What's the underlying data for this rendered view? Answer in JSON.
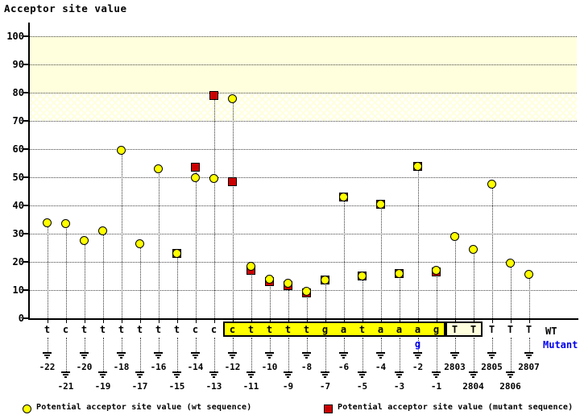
{
  "title": "Acceptor site value",
  "legend": {
    "wt_label": "Potential acceptor site value (wt sequence)",
    "mutant_label": "Potential acceptor site value (mutant sequence)"
  },
  "sequence_row_labels": {
    "wt": "WT",
    "mutant": "Mutant"
  },
  "colors": {
    "wt_marker_fill": "#ffff00",
    "mutant_marker_fill": "#cc0000",
    "high_score_band": "#ffffdd",
    "acceptor_highlight": "#ffff00",
    "exon_box_fill": "#ffffdd",
    "mutant_text_blue": "#0000ee"
  },
  "chart_data": {
    "type": "scatter",
    "title": "Acceptor site value",
    "ylabel": "Acceptor site value",
    "ylim": [
      0,
      105
    ],
    "yticks": [
      0,
      10,
      20,
      30,
      40,
      50,
      60,
      70,
      80,
      90,
      100
    ],
    "grid": "horizontal-dotted",
    "legend_position": "bottom",
    "threshold_bands": [
      {
        "from": 80,
        "to": 100,
        "style": "solid"
      },
      {
        "from": 70,
        "to": 80,
        "style": "hatch"
      }
    ],
    "series_names": [
      "wt",
      "mutant"
    ],
    "points": [
      {
        "pos": "-22",
        "base": "t",
        "region": "intron",
        "label_row": 1,
        "wt": 34,
        "mut": null
      },
      {
        "pos": "-21",
        "base": "c",
        "region": "intron",
        "label_row": 2,
        "wt": 33.5,
        "mut": null
      },
      {
        "pos": "-20",
        "base": "t",
        "region": "intron",
        "label_row": 1,
        "wt": 27.5,
        "mut": null
      },
      {
        "pos": "-19",
        "base": "t",
        "region": "intron",
        "label_row": 2,
        "wt": 31,
        "mut": null
      },
      {
        "pos": "-18",
        "base": "t",
        "region": "intron",
        "label_row": 1,
        "wt": 59.5,
        "mut": null
      },
      {
        "pos": "-17",
        "base": "t",
        "region": "intron",
        "label_row": 2,
        "wt": 26.5,
        "mut": null
      },
      {
        "pos": "-16",
        "base": "t",
        "region": "intron",
        "label_row": 1,
        "wt": 53,
        "mut": null
      },
      {
        "pos": "-15",
        "base": "t",
        "region": "intron",
        "label_row": 2,
        "wt": 23,
        "mut": 23
      },
      {
        "pos": "-14",
        "base": "c",
        "region": "intron",
        "label_row": 1,
        "wt": 50,
        "mut": 53.5
      },
      {
        "pos": "-13",
        "base": "c",
        "region": "intron",
        "label_row": 2,
        "wt": 49.5,
        "mut": 79
      },
      {
        "pos": "-12",
        "base": "c",
        "region": "acceptor",
        "label_row": 1,
        "wt": 78,
        "mut": 48.5
      },
      {
        "pos": "-11",
        "base": "t",
        "region": "acceptor",
        "label_row": 2,
        "wt": 18.5,
        "mut": 17
      },
      {
        "pos": "-10",
        "base": "t",
        "region": "acceptor",
        "label_row": 1,
        "wt": 14,
        "mut": 13
      },
      {
        "pos": "-9",
        "base": "t",
        "region": "acceptor",
        "label_row": 2,
        "wt": 12.5,
        "mut": 11.5
      },
      {
        "pos": "-8",
        "base": "t",
        "region": "acceptor",
        "label_row": 1,
        "wt": 9.5,
        "mut": 9
      },
      {
        "pos": "-7",
        "base": "g",
        "region": "acceptor",
        "label_row": 2,
        "wt": 13.5,
        "mut": 13.5
      },
      {
        "pos": "-6",
        "base": "a",
        "region": "acceptor",
        "label_row": 1,
        "wt": 43,
        "mut": 43
      },
      {
        "pos": "-5",
        "base": "t",
        "region": "acceptor",
        "label_row": 2,
        "wt": 15,
        "mut": 15
      },
      {
        "pos": "-4",
        "base": "a",
        "region": "acceptor",
        "label_row": 1,
        "wt": 40.5,
        "mut": 40.5
      },
      {
        "pos": "-3",
        "base": "a",
        "region": "acceptor",
        "label_row": 2,
        "wt": 16,
        "mut": 16
      },
      {
        "pos": "-2",
        "base": "a",
        "region": "acceptor",
        "label_row": 1,
        "wt": 54,
        "mut": 54
      },
      {
        "pos": "-1",
        "base": "g",
        "region": "acceptor",
        "label_row": 2,
        "wt": 17,
        "mut": 16.5
      },
      {
        "pos": "2803",
        "base": "T",
        "region": "exon_box",
        "label_row": 1,
        "wt": 29,
        "mut": null
      },
      {
        "pos": "2804",
        "base": "T",
        "region": "exon_box",
        "label_row": 2,
        "wt": 24.5,
        "mut": null
      },
      {
        "pos": "2805",
        "base": "T",
        "region": "exon",
        "label_row": 1,
        "wt": 47.5,
        "mut": null
      },
      {
        "pos": "2806",
        "base": "T",
        "region": "exon",
        "label_row": 2,
        "wt": 19.5,
        "mut": null
      },
      {
        "pos": "2807",
        "base": "T",
        "region": "exon",
        "label_row": 1,
        "wt": 15.5,
        "mut": null
      }
    ],
    "mutation": {
      "pos": "-2",
      "wt_base": "a",
      "mut_base": "g"
    }
  }
}
